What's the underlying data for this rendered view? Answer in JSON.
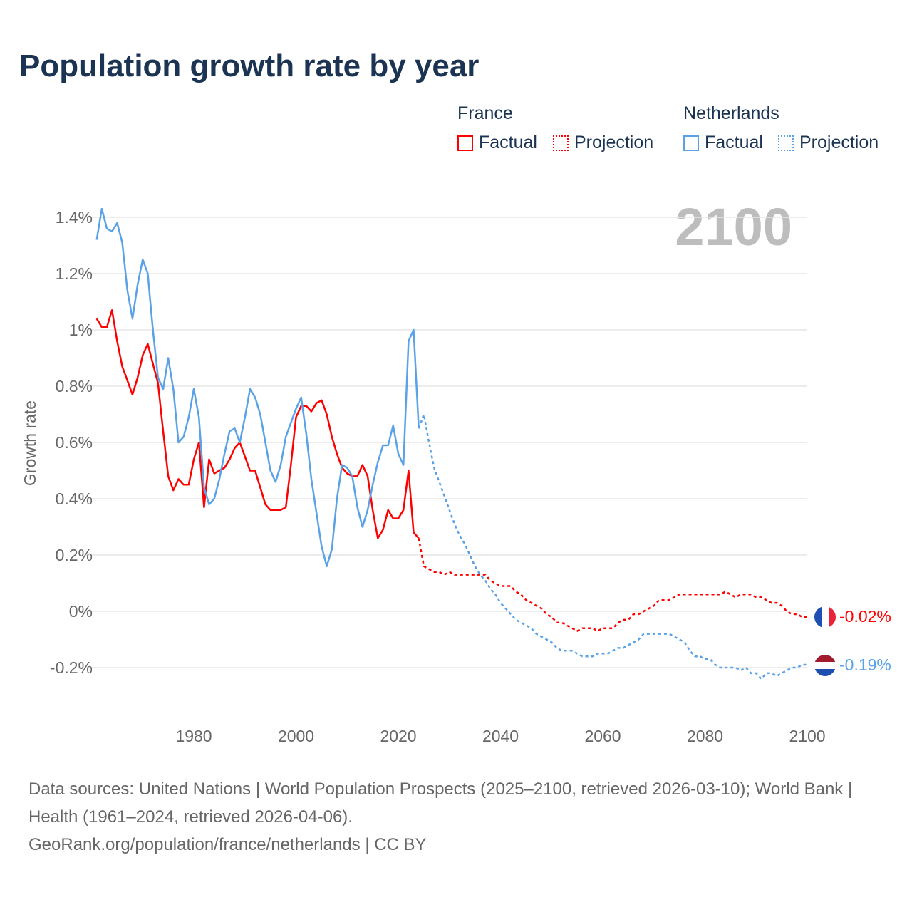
{
  "title": "Population growth rate by year",
  "legend": {
    "groups": [
      {
        "name": "France",
        "factual": "Factual",
        "projection": "Projection",
        "color": "#ff0000"
      },
      {
        "name": "Netherlands",
        "factual": "Factual",
        "projection": "Projection",
        "color": "#5aa2e8"
      }
    ]
  },
  "current_year": "2100",
  "end_labels": {
    "france": "-0.02%",
    "netherlands": "-0.19%"
  },
  "footer": {
    "sources": "Data sources: United Nations | World Population Prospects (2025–2100, retrieved 2026-03-10); World Bank | Health (1961–2024, retrieved 2026-04-06).",
    "credit": "GeoRank.org/population/france/netherlands | CC BY"
  },
  "chart_data": {
    "type": "line",
    "title": "Population growth rate by year",
    "xlabel": "",
    "ylabel": "Growth rate",
    "xlim": [
      1961,
      2100
    ],
    "ylim": [
      -0.3,
      1.45
    ],
    "x_ticks": [
      1980,
      2000,
      2020,
      2040,
      2060,
      2080,
      2100
    ],
    "y_ticks": [
      -0.2,
      0,
      0.2,
      0.4,
      0.6,
      0.8,
      1,
      1.2,
      1.4
    ],
    "y_tick_labels": [
      "-0.2%",
      "0%",
      "0.2%",
      "0.4%",
      "0.6%",
      "0.8%",
      "1%",
      "1.2%",
      "1.4%"
    ],
    "grid": true,
    "legend_placement": "top-right",
    "series": [
      {
        "name": "France Factual",
        "color": "#ff0000",
        "style": "solid",
        "x_start": 1961,
        "values": [
          1.04,
          1.01,
          1.01,
          1.07,
          0.96,
          0.87,
          0.82,
          0.77,
          0.83,
          0.91,
          0.95,
          0.88,
          0.81,
          0.64,
          0.48,
          0.43,
          0.47,
          0.45,
          0.45,
          0.54,
          0.6,
          0.37,
          0.54,
          0.49,
          0.5,
          0.51,
          0.54,
          0.58,
          0.6,
          0.55,
          0.5,
          0.5,
          0.44,
          0.38,
          0.36,
          0.36,
          0.36,
          0.37,
          0.52,
          0.69,
          0.73,
          0.73,
          0.71,
          0.74,
          0.75,
          0.7,
          0.62,
          0.56,
          0.51,
          0.49,
          0.48,
          0.48,
          0.52,
          0.48,
          0.36,
          0.26,
          0.29,
          0.36,
          0.33,
          0.33,
          0.36,
          0.5,
          0.28,
          0.26
        ]
      },
      {
        "name": "France Projection",
        "color": "#ff0000",
        "style": "dotted",
        "x_start": 2024,
        "values": [
          0.26,
          0.16,
          0.15,
          0.14,
          0.14,
          0.13,
          0.14,
          0.13,
          0.13,
          0.13,
          0.13,
          0.13,
          0.13,
          0.13,
          0.11,
          0.1,
          0.09,
          0.09,
          0.09,
          0.07,
          0.06,
          0.04,
          0.03,
          0.02,
          0.01,
          -0.01,
          -0.02,
          -0.04,
          -0.04,
          -0.05,
          -0.06,
          -0.07,
          -0.06,
          -0.06,
          -0.06,
          -0.07,
          -0.06,
          -0.06,
          -0.06,
          -0.04,
          -0.03,
          -0.03,
          -0.01,
          -0.01,
          0.0,
          0.01,
          0.02,
          0.04,
          0.04,
          0.04,
          0.05,
          0.06,
          0.06,
          0.06,
          0.06,
          0.06,
          0.06,
          0.06,
          0.06,
          0.06,
          0.07,
          0.06,
          0.05,
          0.06,
          0.06,
          0.06,
          0.05,
          0.05,
          0.04,
          0.03,
          0.03,
          0.02,
          0.0,
          -0.01,
          -0.01,
          -0.02,
          -0.02
        ]
      },
      {
        "name": "Netherlands Factual",
        "color": "#5aa2e8",
        "style": "solid",
        "x_start": 1961,
        "values": [
          1.32,
          1.43,
          1.36,
          1.35,
          1.38,
          1.31,
          1.14,
          1.04,
          1.16,
          1.25,
          1.2,
          1.0,
          0.83,
          0.79,
          0.9,
          0.79,
          0.6,
          0.62,
          0.69,
          0.79,
          0.69,
          0.44,
          0.38,
          0.4,
          0.47,
          0.56,
          0.64,
          0.65,
          0.6,
          0.69,
          0.79,
          0.76,
          0.7,
          0.6,
          0.5,
          0.46,
          0.52,
          0.62,
          0.67,
          0.72,
          0.76,
          0.63,
          0.47,
          0.35,
          0.23,
          0.16,
          0.22,
          0.4,
          0.52,
          0.51,
          0.48,
          0.37,
          0.3,
          0.36,
          0.45,
          0.53,
          0.59,
          0.59,
          0.66,
          0.56,
          0.52,
          0.96,
          1.0,
          0.65
        ]
      },
      {
        "name": "Netherlands Projection",
        "color": "#5aa2e8",
        "style": "dotted",
        "x_start": 2024,
        "values": [
          0.65,
          0.7,
          0.6,
          0.51,
          0.46,
          0.41,
          0.36,
          0.31,
          0.27,
          0.24,
          0.2,
          0.16,
          0.13,
          0.11,
          0.08,
          0.06,
          0.03,
          0.01,
          -0.01,
          -0.03,
          -0.04,
          -0.05,
          -0.06,
          -0.08,
          -0.09,
          -0.1,
          -0.11,
          -0.13,
          -0.14,
          -0.14,
          -0.14,
          -0.15,
          -0.16,
          -0.16,
          -0.16,
          -0.15,
          -0.15,
          -0.15,
          -0.14,
          -0.13,
          -0.13,
          -0.12,
          -0.11,
          -0.1,
          -0.08,
          -0.08,
          -0.08,
          -0.08,
          -0.08,
          -0.08,
          -0.09,
          -0.1,
          -0.11,
          -0.14,
          -0.16,
          -0.16,
          -0.17,
          -0.17,
          -0.19,
          -0.2,
          -0.2,
          -0.2,
          -0.2,
          -0.21,
          -0.2,
          -0.22,
          -0.22,
          -0.24,
          -0.22,
          -0.22,
          -0.23,
          -0.22,
          -0.21,
          -0.2,
          -0.2,
          -0.19,
          -0.19
        ]
      }
    ]
  }
}
